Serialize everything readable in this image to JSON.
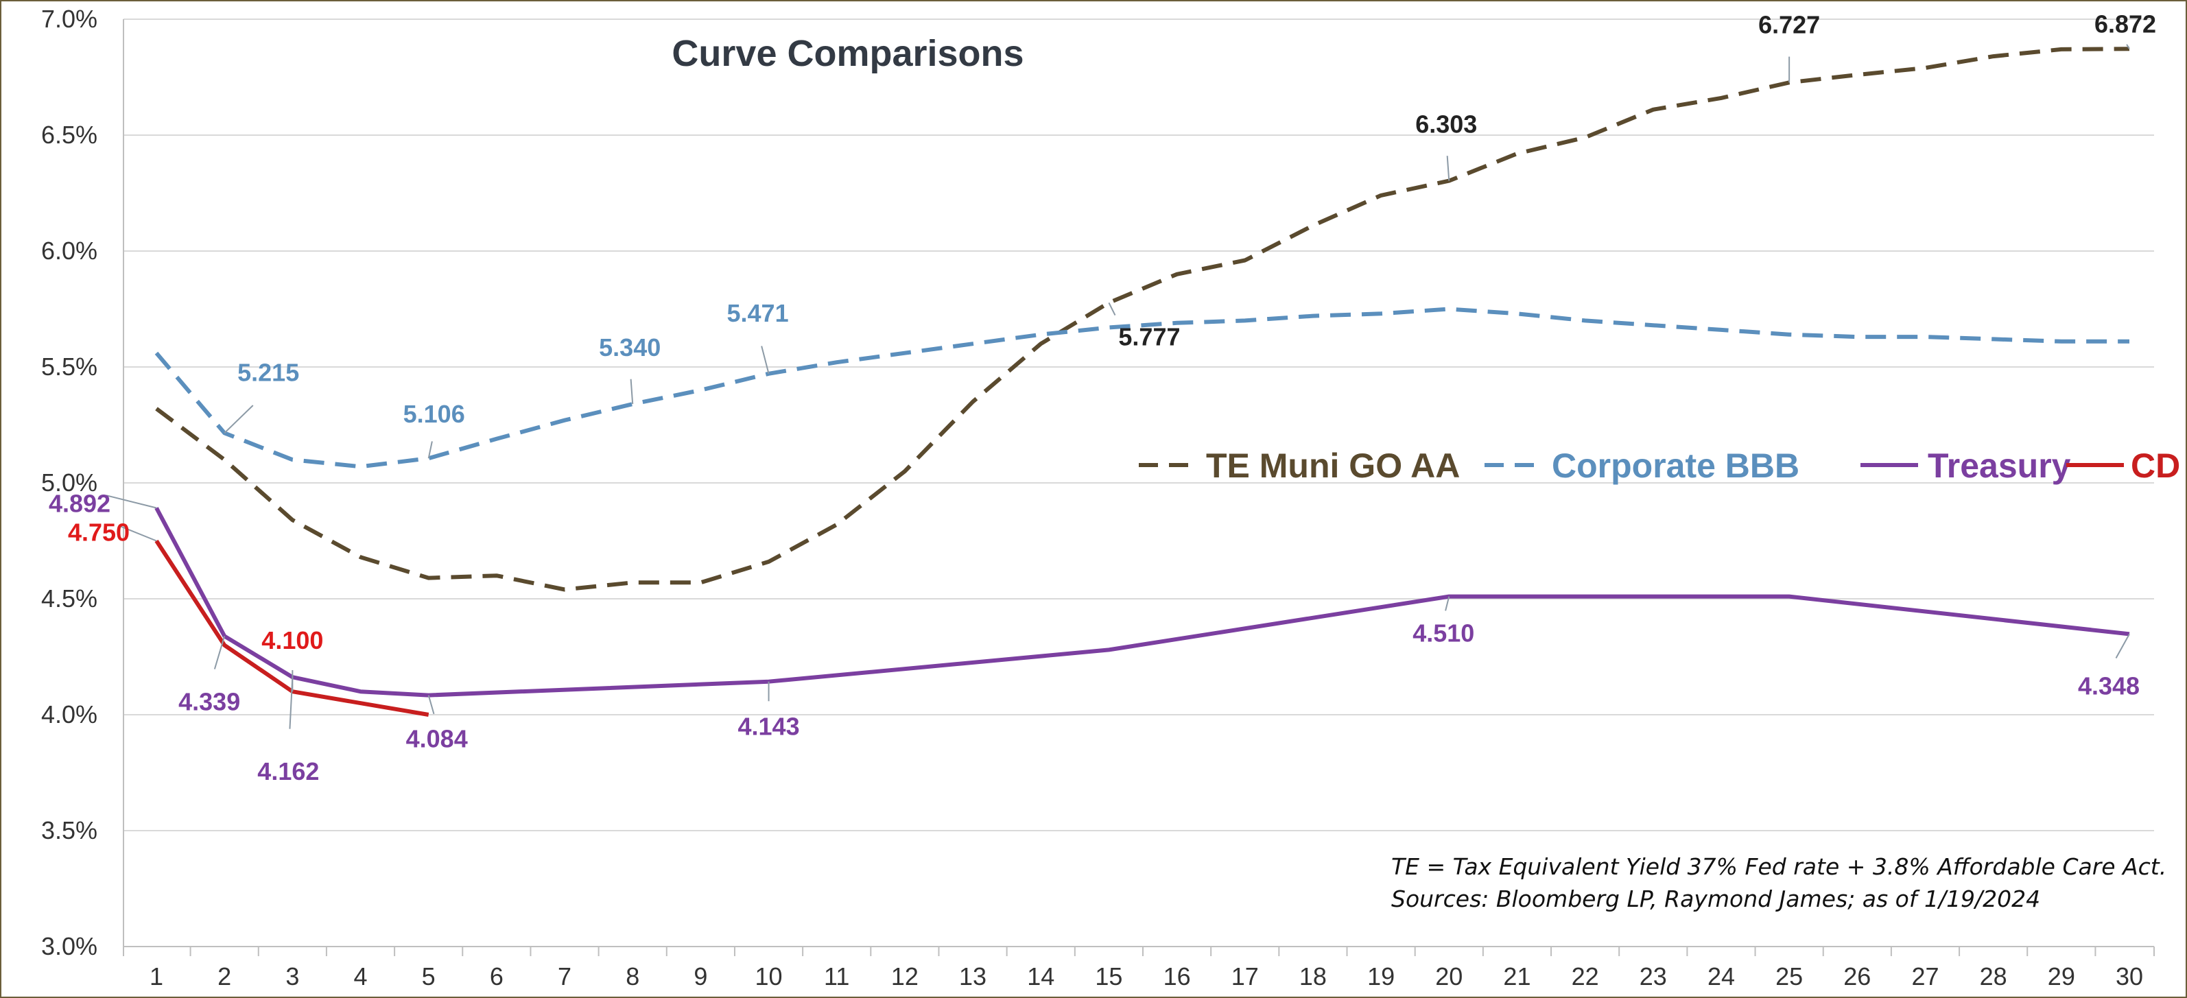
{
  "chart_data": {
    "type": "line",
    "title": "Curve Comparisons",
    "xlabel": "",
    "ylabel": "",
    "x": [
      1,
      2,
      3,
      4,
      5,
      6,
      7,
      8,
      9,
      10,
      11,
      12,
      13,
      14,
      15,
      16,
      17,
      18,
      19,
      20,
      21,
      22,
      23,
      24,
      25,
      26,
      27,
      28,
      29,
      30
    ],
    "y_tick_labels": [
      "3.0%",
      "3.5%",
      "4.0%",
      "4.5%",
      "5.0%",
      "5.5%",
      "6.0%",
      "6.5%",
      "7.0%"
    ],
    "ylim": [
      3.0,
      7.0
    ],
    "xlim": [
      1,
      30
    ],
    "grid": "horizontal",
    "legend_position": "right-middle",
    "series": [
      {
        "name": "TE Muni GO AA",
        "color": "#5a4a2e",
        "dash": "dashed",
        "x": [
          1,
          2,
          3,
          4,
          5,
          6,
          7,
          8,
          9,
          10,
          11,
          12,
          13,
          14,
          15,
          16,
          17,
          18,
          19,
          20,
          21,
          22,
          23,
          24,
          25,
          26,
          27,
          28,
          29,
          30
        ],
        "values": [
          5.32,
          5.1,
          4.84,
          4.68,
          4.59,
          4.6,
          4.54,
          4.57,
          4.57,
          4.66,
          4.82,
          5.05,
          5.35,
          5.6,
          5.777,
          5.9,
          5.96,
          6.11,
          6.24,
          6.303,
          6.42,
          6.49,
          6.61,
          6.66,
          6.727,
          6.76,
          6.79,
          6.84,
          6.87,
          6.872
        ]
      },
      {
        "name": "Corporate BBB",
        "color": "#5b8fbd",
        "dash": "dashed",
        "x": [
          1,
          2,
          3,
          4,
          5,
          6,
          7,
          8,
          9,
          10,
          11,
          12,
          13,
          14,
          15,
          16,
          17,
          18,
          19,
          20,
          21,
          22,
          23,
          24,
          25,
          26,
          27,
          28,
          29,
          30
        ],
        "values": [
          5.56,
          5.215,
          5.1,
          5.07,
          5.106,
          5.19,
          5.27,
          5.34,
          5.4,
          5.471,
          5.52,
          5.56,
          5.6,
          5.64,
          5.67,
          5.69,
          5.7,
          5.72,
          5.73,
          5.75,
          5.73,
          5.7,
          5.68,
          5.66,
          5.64,
          5.63,
          5.63,
          5.62,
          5.61,
          5.61
        ]
      },
      {
        "name": "Treasury",
        "color": "#7b3fa0",
        "dash": "solid",
        "x": [
          1,
          2,
          3,
          4,
          5,
          10,
          15,
          20,
          25,
          30
        ],
        "values": [
          4.892,
          4.339,
          4.162,
          4.1,
          4.084,
          4.143,
          4.28,
          4.51,
          4.51,
          4.348
        ]
      },
      {
        "name": "CD",
        "color": "#c81e1e",
        "dash": "solid",
        "x": [
          1,
          2,
          3,
          5
        ],
        "values": [
          4.75,
          4.3,
          4.1,
          4.0
        ]
      }
    ],
    "data_labels": [
      {
        "series": "TE Muni GO AA",
        "x": 15,
        "text": "5.777",
        "color": "#222222"
      },
      {
        "series": "TE Muni GO AA",
        "x": 20,
        "text": "6.303",
        "color": "#222222"
      },
      {
        "series": "TE Muni GO AA",
        "x": 25,
        "text": "6.727",
        "color": "#222222"
      },
      {
        "series": "TE Muni GO AA",
        "x": 30,
        "text": "6.872",
        "color": "#222222"
      },
      {
        "series": "Corporate BBB",
        "x": 2,
        "text": "5.215",
        "color": "#5b8fbd"
      },
      {
        "series": "Corporate BBB",
        "x": 5,
        "text": "5.106",
        "color": "#5b8fbd"
      },
      {
        "series": "Corporate BBB",
        "x": 8,
        "text": "5.340",
        "color": "#5b8fbd"
      },
      {
        "series": "Corporate BBB",
        "x": 10,
        "text": "5.471",
        "color": "#5b8fbd"
      },
      {
        "series": "Treasury",
        "x": 1,
        "text": "4.892",
        "color": "#7b3fa0"
      },
      {
        "series": "Treasury",
        "x": 2,
        "text": "4.339",
        "color": "#7b3fa0"
      },
      {
        "series": "Treasury",
        "x": 3,
        "text": "4.162",
        "color": "#7b3fa0"
      },
      {
        "series": "Treasury",
        "x": 5,
        "text": "4.084",
        "color": "#7b3fa0"
      },
      {
        "series": "Treasury",
        "x": 10,
        "text": "4.143",
        "color": "#7b3fa0"
      },
      {
        "series": "Treasury",
        "x": 20,
        "text": "4.510",
        "color": "#7b3fa0"
      },
      {
        "series": "Treasury",
        "x": 30,
        "text": "4.348",
        "color": "#7b3fa0"
      },
      {
        "series": "CD",
        "x": 1,
        "text": "4.750",
        "color": "#e01a1a"
      },
      {
        "series": "CD",
        "x": 3,
        "text": "4.100",
        "color": "#e01a1a"
      }
    ],
    "annotations": [
      "TE = Tax Equivalent Yield 37%  Fed rate + 3.8% Affordable Care Act.",
      "Sources: Bloomberg LP, Raymond James; as of  1/19/2024"
    ],
    "colors": {
      "grid": "#d9d9d9",
      "axis": "#bfbfbf",
      "border": "#6b5e3a",
      "leader": "#8c9aa6"
    }
  }
}
